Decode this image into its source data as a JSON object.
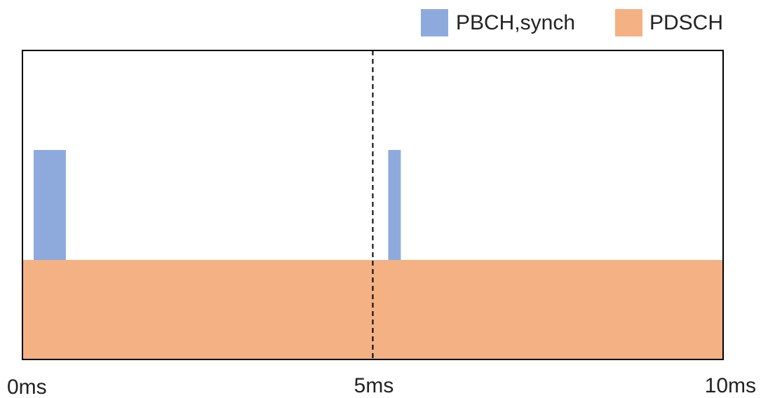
{
  "legend": {
    "items": [
      {
        "label": "PBCH,synch",
        "color": "#8eaadc"
      },
      {
        "label": "PDSCH",
        "color": "#f4b183"
      }
    ]
  },
  "axis": {
    "ticks": [
      {
        "label": "0ms",
        "value": 0
      },
      {
        "label": "5ms",
        "value": 5
      },
      {
        "label": "10ms",
        "value": 10
      }
    ],
    "divider_at_ms": 5,
    "range_ms": [
      0,
      10
    ]
  },
  "regions": {
    "pdsch": {
      "start_ms": 0,
      "end_ms": 10,
      "color": "#f4b183"
    },
    "pbch_blocks": [
      {
        "start_ms": 0.16,
        "end_ms": 0.62,
        "color": "#8eaadc"
      },
      {
        "start_ms": 5.22,
        "end_ms": 5.4,
        "color": "#8eaadc"
      }
    ]
  },
  "colors": {
    "border": "#000000",
    "divider": "#000000"
  }
}
